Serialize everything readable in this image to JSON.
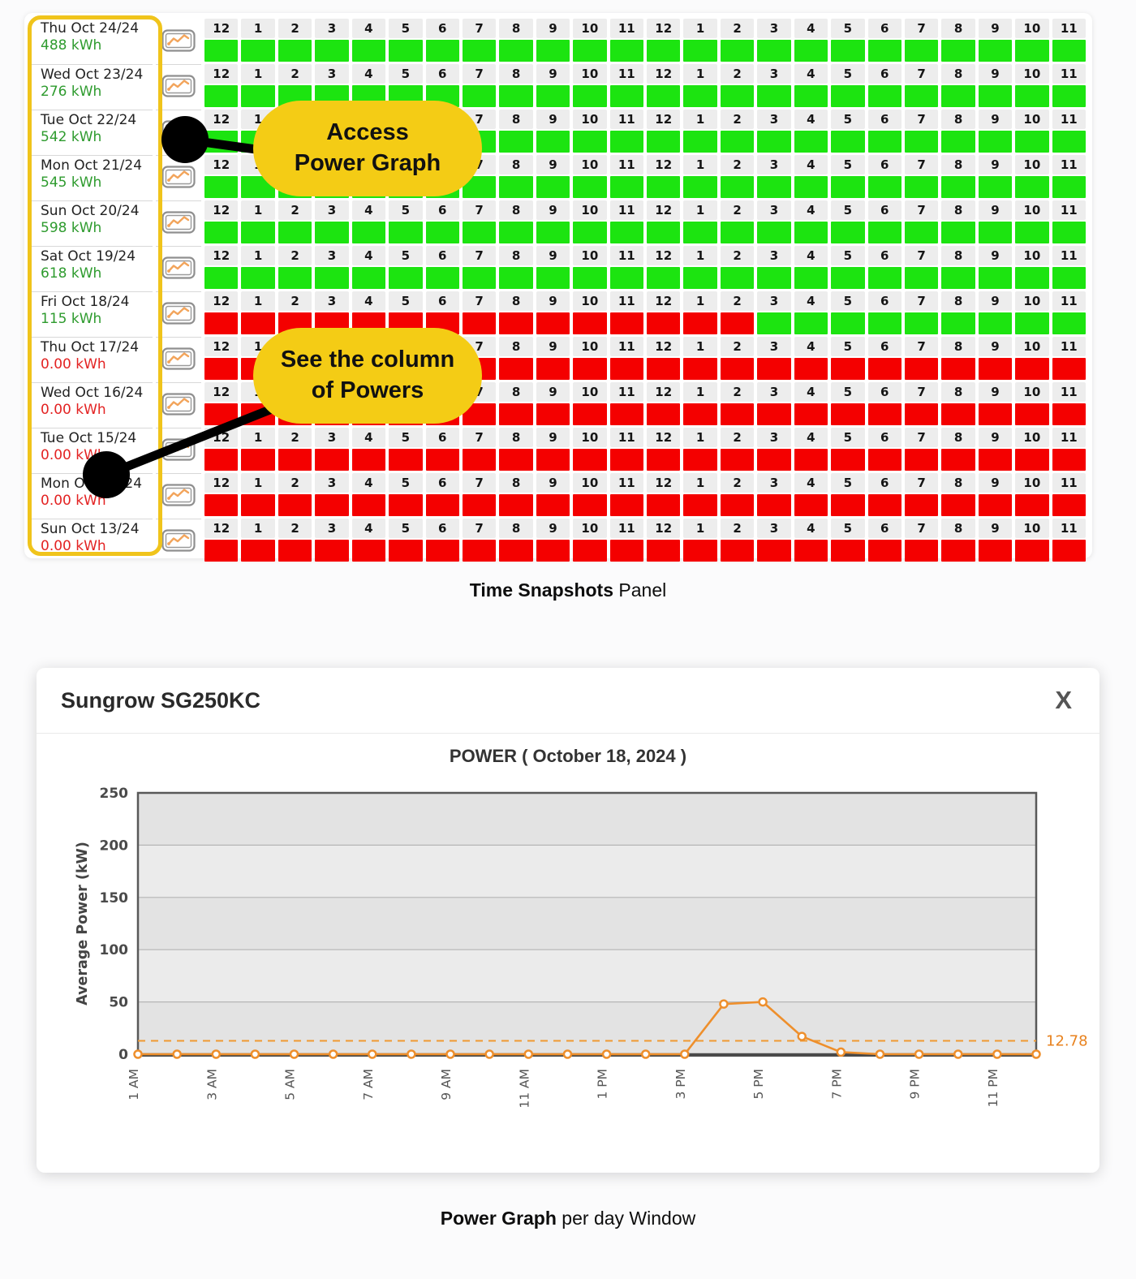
{
  "snapshot_panel": {
    "hours": [
      "12",
      "1",
      "2",
      "3",
      "4",
      "5",
      "6",
      "7",
      "8",
      "9",
      "10",
      "11",
      "12",
      "1",
      "2",
      "3",
      "4",
      "5",
      "6",
      "7",
      "8",
      "9",
      "10",
      "11"
    ],
    "rows": [
      {
        "date": "Thu Oct 24/24",
        "energy": "488 kWh",
        "energy_state": "ok",
        "cells": "gggggggggggggggggggggggg"
      },
      {
        "date": "Wed Oct 23/24",
        "energy": "276 kWh",
        "energy_state": "ok",
        "cells": "gggggggggggggggggggggggg"
      },
      {
        "date": "Tue Oct 22/24",
        "energy": "542 kWh",
        "energy_state": "ok",
        "cells": "gggggggggggggggggggggggg"
      },
      {
        "date": "Mon Oct 21/24",
        "energy": "545 kWh",
        "energy_state": "ok",
        "cells": "gggggggggggggggggggggggg"
      },
      {
        "date": "Sun Oct 20/24",
        "energy": "598 kWh",
        "energy_state": "ok",
        "cells": "gggggggggggggggggggggggg"
      },
      {
        "date": "Sat Oct 19/24",
        "energy": "618 kWh",
        "energy_state": "ok",
        "cells": "gggggggggggggggggggggggg"
      },
      {
        "date": "Fri Oct 18/24",
        "energy": "115 kWh",
        "energy_state": "ok",
        "cells": "rrrrrrrrrrrrrrrggggggggg"
      },
      {
        "date": "Thu Oct 17/24",
        "energy": "0.00 kWh",
        "energy_state": "off",
        "cells": "rrrrrrrrrrrrrrrrrrrrrrrr"
      },
      {
        "date": "Wed Oct 16/24",
        "energy": "0.00 kWh",
        "energy_state": "off",
        "cells": "rrrrrrrrrrrrrrrrrrrrrrrr"
      },
      {
        "date": "Tue Oct 15/24",
        "energy": "0.00 kWh",
        "energy_state": "off",
        "cells": "rrrrrrrrrrrrrrrrrrrrrrrr"
      },
      {
        "date": "Mon Oct 14/24",
        "energy": "0.00 kWh",
        "energy_state": "off",
        "cells": "rrrrrrrrrrrrrrrrrrrrrrrr"
      },
      {
        "date": "Sun Oct 13/24",
        "energy": "0.00 kWh",
        "energy_state": "off",
        "cells": "rrrrrrrrrrrrrrrrrrrrrrrr"
      }
    ],
    "colors": {
      "cell_ok": "#1ce410",
      "cell_off": "#f40000",
      "energy_ok": "#2e9b2e",
      "energy_off": "#e32323",
      "highlight_border": "#f0c41b"
    }
  },
  "annotations": {
    "bubble_color": "#f4cc15",
    "callout_power_graph": {
      "lines": [
        "Access",
        "Power Graph"
      ]
    },
    "callout_powers_column": {
      "lines": [
        "See the column",
        "of Powers"
      ]
    }
  },
  "captions": {
    "panel": {
      "bold": "Time Snapshots",
      "rest": " Panel"
    },
    "window": {
      "bold": "Power Graph",
      "rest": " per day Window"
    }
  },
  "modal": {
    "title": "Sungrow SG250KC",
    "close_label": "X"
  },
  "chart_data": {
    "type": "line",
    "title": "POWER ( October 18, 2024 )",
    "ylabel": "Average Power (kW)",
    "ylim": [
      0,
      250
    ],
    "yticks": [
      0,
      50,
      100,
      150,
      200,
      250
    ],
    "grid": true,
    "legend": "none",
    "plot_bands_alternate": true,
    "x": [
      "1 AM",
      "2 AM",
      "3 AM",
      "4 AM",
      "5 AM",
      "6 AM",
      "7 AM",
      "8 AM",
      "9 AM",
      "10 AM",
      "11 AM",
      "12 PM",
      "1 PM",
      "2 PM",
      "3 PM",
      "4 PM",
      "5 PM",
      "6 PM",
      "7 PM",
      "8 PM",
      "9 PM",
      "10 PM",
      "11 PM",
      "12 AM"
    ],
    "x_tick_labels": [
      "1 AM",
      "3 AM",
      "5 AM",
      "7 AM",
      "9 AM",
      "11 AM",
      "1 PM",
      "3 PM",
      "5 PM",
      "7 PM",
      "9 PM",
      "11 PM"
    ],
    "series": [
      {
        "name": "Average Power (kW)",
        "values": [
          0,
          0,
          0,
          0,
          0,
          0,
          0,
          0,
          0,
          0,
          0,
          0,
          0,
          0,
          0,
          48,
          50,
          17,
          2,
          0,
          0,
          0,
          0,
          0
        ]
      }
    ],
    "reference_line": {
      "value": 12.78,
      "label": "12.78"
    },
    "line_color": "#ee8f2c",
    "reference_color": "#f09a32",
    "plot_bg_dark": "#e3e3e3",
    "plot_bg_light": "#ebebeb",
    "gridline_color": "#b5b5b5",
    "axis_color": "#595959"
  }
}
